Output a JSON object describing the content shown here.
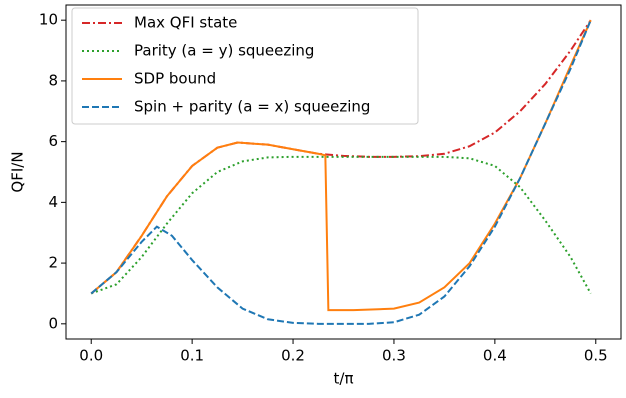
{
  "chart_data": {
    "type": "line",
    "x_label": "t/π",
    "y_label": "QFI/N",
    "xlim": [
      -0.025,
      0.525
    ],
    "ylim": [
      -0.5,
      10.5
    ],
    "xticks": [
      {
        "value": 0,
        "label": "0.0"
      },
      {
        "value": 0.1,
        "label": "0.1"
      },
      {
        "value": 0.2,
        "label": "0.2"
      },
      {
        "value": 0.3,
        "label": "0.3"
      },
      {
        "value": 0.4,
        "label": "0.4"
      },
      {
        "value": 0.5,
        "label": "0.5"
      }
    ],
    "yticks": [
      0,
      2,
      4,
      6,
      8,
      10
    ],
    "legend": "upper left",
    "series": [
      {
        "name": "Max QFI state",
        "color": "#d62728",
        "style": "dashdot",
        "x": [
          0,
          0.025,
          0.05,
          0.075,
          0.1,
          0.125,
          0.145,
          0.175,
          0.2,
          0.225,
          0.25,
          0.275,
          0.3,
          0.325,
          0.35,
          0.375,
          0.4,
          0.425,
          0.45,
          0.475,
          0.495
        ],
        "values": [
          1,
          1.7,
          2.9,
          4.2,
          5.2,
          5.8,
          5.97,
          5.9,
          5.75,
          5.6,
          5.53,
          5.5,
          5.5,
          5.52,
          5.6,
          5.85,
          6.3,
          7.0,
          7.9,
          9.0,
          10
        ]
      },
      {
        "name": "Parity (a = y) squeezing",
        "color": "#2ca02c",
        "style": "dotted",
        "x": [
          0,
          0.025,
          0.05,
          0.075,
          0.1,
          0.125,
          0.15,
          0.175,
          0.2,
          0.25,
          0.3,
          0.35,
          0.375,
          0.4,
          0.425,
          0.45,
          0.475,
          0.495
        ],
        "values": [
          1,
          1.3,
          2.2,
          3.3,
          4.3,
          5.0,
          5.35,
          5.48,
          5.5,
          5.5,
          5.5,
          5.5,
          5.45,
          5.2,
          4.5,
          3.4,
          2.2,
          1.0
        ]
      },
      {
        "name": "SDP bound",
        "color": "#ff7f0e",
        "style": "solid",
        "x": [
          0,
          0.025,
          0.05,
          0.075,
          0.1,
          0.125,
          0.145,
          0.175,
          0.2,
          0.225,
          0.232,
          0.235,
          0.26,
          0.3,
          0.325,
          0.35,
          0.375,
          0.4,
          0.425,
          0.45,
          0.475,
          0.495
        ],
        "values": [
          1,
          1.7,
          2.9,
          4.2,
          5.2,
          5.8,
          5.97,
          5.9,
          5.75,
          5.6,
          5.55,
          0.45,
          0.45,
          0.5,
          0.7,
          1.2,
          2.0,
          3.3,
          4.8,
          6.6,
          8.5,
          10
        ]
      },
      {
        "name": "Spin + parity (a = x) squeezing",
        "color": "#1f77b4",
        "style": "dashed",
        "x": [
          0,
          0.025,
          0.05,
          0.065,
          0.08,
          0.1,
          0.125,
          0.15,
          0.175,
          0.2,
          0.225,
          0.25,
          0.275,
          0.3,
          0.325,
          0.35,
          0.375,
          0.4,
          0.425,
          0.45,
          0.475,
          0.495
        ],
        "values": [
          1,
          1.7,
          2.7,
          3.2,
          2.9,
          2.1,
          1.2,
          0.5,
          0.15,
          0.03,
          0,
          0,
          0,
          0.05,
          0.3,
          0.9,
          1.9,
          3.2,
          4.8,
          6.6,
          8.4,
          10
        ]
      }
    ]
  }
}
